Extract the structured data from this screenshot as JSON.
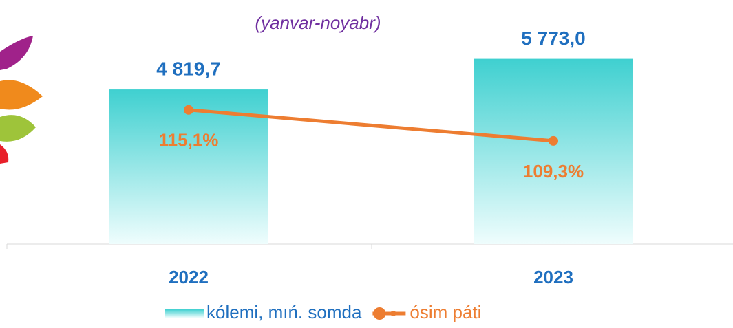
{
  "chart_data": {
    "type": "bar",
    "subtitle": "(yanvar-noyabr)",
    "categories": [
      "2022",
      "2023"
    ],
    "series": [
      {
        "name": "kólemi, mıń. somda",
        "type": "bar",
        "color": "#3fd0d0",
        "values": [
          4819.7,
          5773.0
        ],
        "value_labels": [
          "4 819,7",
          "5 773,0"
        ]
      },
      {
        "name": "ósim páti",
        "type": "line",
        "axis": "y2",
        "color": "#ed7d31",
        "values": [
          115.1,
          109.3
        ],
        "value_labels": [
          "115,1%",
          "109,3%"
        ]
      }
    ],
    "ylim": [
      0,
      6000
    ],
    "y2lim": [
      90,
      126
    ],
    "legend": "bottom"
  }
}
